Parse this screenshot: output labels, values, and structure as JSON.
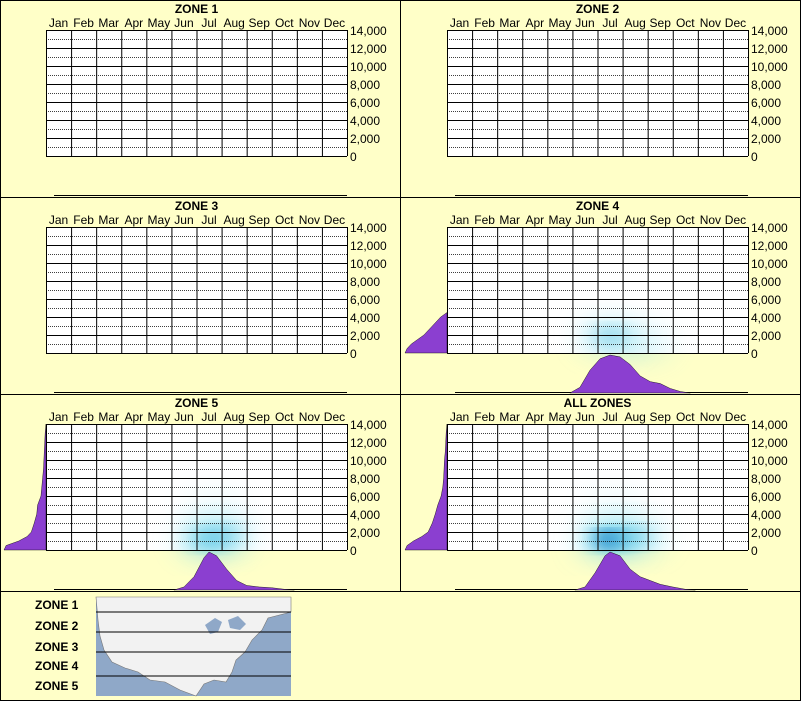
{
  "months": [
    "Jan",
    "Feb",
    "Mar",
    "Apr",
    "May",
    "Jun",
    "Jul",
    "Aug",
    "Sep",
    "Oct",
    "Nov",
    "Dec"
  ],
  "y_ticks": [
    "14,000",
    "12,000",
    "10,000",
    "8,000",
    "6,000",
    "4,000",
    "2,000",
    "0"
  ],
  "colors": {
    "background": "#FFFFC8",
    "density": "#8B3FD0",
    "heat": "#0A5AB4",
    "grid": "#000000"
  },
  "chart_data": [
    {
      "type": "heatmap",
      "title": "ZONE 1",
      "ylim": [
        0,
        14000
      ],
      "hotspots": [],
      "elevation_density": [],
      "month_density": []
    },
    {
      "type": "heatmap",
      "title": "ZONE 2",
      "ylim": [
        0,
        14000
      ],
      "hotspots": [],
      "elevation_density": [],
      "month_density": []
    },
    {
      "type": "heatmap",
      "title": "ZONE 3",
      "ylim": [
        0,
        14000
      ],
      "hotspots": [],
      "elevation_density": [],
      "month_density": []
    },
    {
      "type": "heatmap",
      "title": "ZONE 4",
      "ylim": [
        0,
        14000
      ],
      "hotspots": [
        {
          "month": 7.0,
          "elevation": 1800,
          "intensity": 0.45
        },
        {
          "month": 8.3,
          "elevation": 1000,
          "intensity": 0.25
        }
      ],
      "elevation_density": [
        [
          0,
          1.0
        ],
        [
          500,
          0.95
        ],
        [
          1000,
          0.85
        ],
        [
          1500,
          0.7
        ],
        [
          2000,
          0.55
        ],
        [
          2500,
          0.45
        ],
        [
          3000,
          0.35
        ],
        [
          3500,
          0.25
        ],
        [
          4000,
          0.15
        ],
        [
          4500,
          0.0
        ]
      ],
      "month_density": [
        [
          5.4,
          0
        ],
        [
          5.8,
          0.15
        ],
        [
          6.2,
          0.6
        ],
        [
          6.6,
          0.9
        ],
        [
          7.0,
          1.0
        ],
        [
          7.4,
          0.95
        ],
        [
          7.8,
          0.75
        ],
        [
          8.2,
          0.45
        ],
        [
          8.6,
          0.3
        ],
        [
          9.0,
          0.25
        ],
        [
          9.4,
          0.12
        ],
        [
          9.8,
          0.04
        ],
        [
          10.2,
          0
        ]
      ]
    },
    {
      "type": "heatmap",
      "title": "ZONE 5",
      "ylim": [
        0,
        14000
      ],
      "hotspots": [
        {
          "month": 7.0,
          "elevation": 1200,
          "intensity": 0.65
        },
        {
          "month": 7.6,
          "elevation": 1600,
          "intensity": 0.35
        },
        {
          "month": 7.2,
          "elevation": 5000,
          "intensity": 0.12
        }
      ],
      "elevation_density": [
        [
          0,
          1.0
        ],
        [
          500,
          0.95
        ],
        [
          1000,
          0.65
        ],
        [
          1500,
          0.45
        ],
        [
          2000,
          0.35
        ],
        [
          3000,
          0.28
        ],
        [
          4000,
          0.22
        ],
        [
          5000,
          0.2
        ],
        [
          6000,
          0.12
        ],
        [
          7000,
          0.1
        ],
        [
          8000,
          0.08
        ],
        [
          9000,
          0.06
        ],
        [
          10000,
          0.05
        ],
        [
          11000,
          0.04
        ],
        [
          12000,
          0.03
        ],
        [
          13000,
          0.02
        ],
        [
          14000,
          0.0
        ]
      ],
      "month_density": [
        [
          5.6,
          0
        ],
        [
          6.0,
          0.08
        ],
        [
          6.4,
          0.35
        ],
        [
          6.8,
          0.85
        ],
        [
          7.0,
          1.0
        ],
        [
          7.3,
          0.9
        ],
        [
          7.7,
          0.55
        ],
        [
          8.1,
          0.25
        ],
        [
          8.5,
          0.12
        ],
        [
          9.0,
          0.08
        ],
        [
          9.5,
          0.06
        ],
        [
          10.0,
          0.02
        ],
        [
          10.4,
          0
        ]
      ]
    },
    {
      "type": "heatmap",
      "title": "ALL ZONES",
      "ylim": [
        0,
        14000
      ],
      "hotspots": [
        {
          "month": 7.0,
          "elevation": 1200,
          "intensity": 1.0
        },
        {
          "month": 8.0,
          "elevation": 1400,
          "intensity": 0.45
        },
        {
          "month": 7.2,
          "elevation": 5000,
          "intensity": 0.12
        }
      ],
      "elevation_density": [
        [
          0,
          1.0
        ],
        [
          500,
          0.95
        ],
        [
          1000,
          0.8
        ],
        [
          1500,
          0.6
        ],
        [
          2000,
          0.45
        ],
        [
          3000,
          0.35
        ],
        [
          4000,
          0.28
        ],
        [
          5000,
          0.22
        ],
        [
          6000,
          0.14
        ],
        [
          7000,
          0.1
        ],
        [
          8000,
          0.08
        ],
        [
          9000,
          0.07
        ],
        [
          10000,
          0.06
        ],
        [
          11000,
          0.04
        ],
        [
          12000,
          0.03
        ],
        [
          13000,
          0.02
        ],
        [
          14000,
          0.0
        ]
      ],
      "month_density": [
        [
          5.6,
          0
        ],
        [
          6.0,
          0.08
        ],
        [
          6.4,
          0.45
        ],
        [
          6.8,
          0.9
        ],
        [
          7.0,
          1.0
        ],
        [
          7.4,
          0.9
        ],
        [
          7.8,
          0.55
        ],
        [
          8.2,
          0.35
        ],
        [
          8.6,
          0.25
        ],
        [
          9.0,
          0.15
        ],
        [
          9.5,
          0.08
        ],
        [
          10.0,
          0.02
        ],
        [
          10.4,
          0
        ]
      ]
    }
  ],
  "legend": {
    "zones": [
      "ZONE 1",
      "ZONE 2",
      "ZONE 3",
      "ZONE 4",
      "ZONE 5"
    ]
  }
}
